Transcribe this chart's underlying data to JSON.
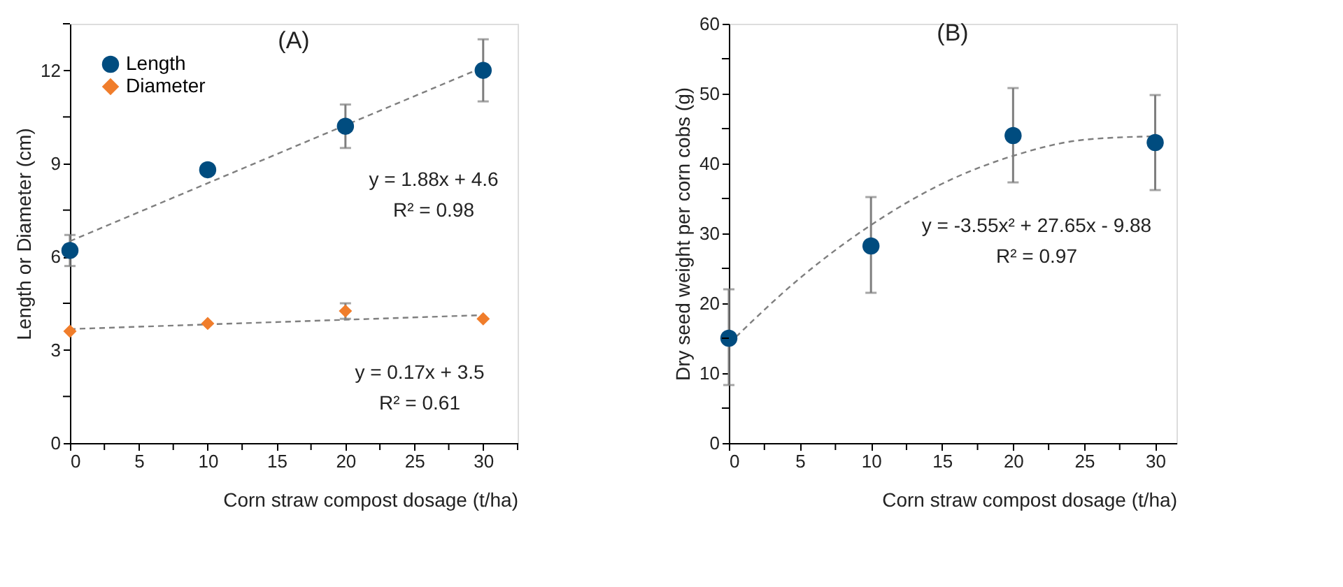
{
  "chart_data": [
    {
      "type": "scatter",
      "title": "(A)",
      "xlabel": "Corn straw compost dosage (t/ha)",
      "ylabel": "Length or Diameter (cm)",
      "xlim": [
        0,
        32.5
      ],
      "xticks": [
        0,
        {
          "value": 2.5,
          "label": null
        },
        5,
        {
          "value": 7.5,
          "label": null
        },
        10,
        {
          "value": 12.5,
          "label": null
        },
        15,
        {
          "value": 17.5,
          "label": null
        },
        20,
        {
          "value": 22.5,
          "label": null
        },
        25,
        {
          "value": 27.5,
          "label": null
        },
        30,
        {
          "value": 32.5,
          "label": null
        }
      ],
      "ylim": [
        0,
        13.5
      ],
      "yticks": [
        0,
        {
          "value": 1.5,
          "label": null
        },
        3,
        {
          "value": 4.5,
          "label": null
        },
        6,
        {
          "value": 7.5,
          "label": null
        },
        9,
        {
          "value": 10.5,
          "label": null
        },
        12,
        {
          "value": 13.5,
          "label": null
        }
      ],
      "grid": false,
      "legend": "top left",
      "series": [
        {
          "name": "Length",
          "marker": "circle",
          "color": "#004c7f",
          "x": [
            0,
            10,
            20,
            30
          ],
          "values": [
            6.2,
            8.8,
            10.2,
            12.0
          ],
          "errors": [
            0.5,
            null,
            0.7,
            1.0
          ]
        },
        {
          "name": "Diameter",
          "marker": "diamond",
          "color": "#f07d2b",
          "x": [
            0,
            10,
            20,
            30
          ],
          "values": [
            3.6,
            3.85,
            4.25,
            4.0
          ],
          "errors": [
            null,
            null,
            0.25,
            null
          ]
        },
        {
          "type": "line",
          "line_style": "dashed",
          "marker": "none",
          "color": "#7f7f7f",
          "x": [
            0,
            30
          ],
          "values": [
            6.5,
            12.1
          ]
        },
        {
          "type": "line",
          "line_style": "dashed",
          "marker": "none",
          "color": "#7f7f7f",
          "x": [
            0,
            30
          ],
          "values": [
            3.67,
            4.12
          ]
        }
      ],
      "annotations": [
        "y = 1.88x + 4.6",
        "R² = 0.98",
        "y = 0.17x + 3.5",
        "R² = 0.61"
      ]
    },
    {
      "type": "scatter",
      "title": "(B)",
      "xlabel": "Corn straw compost dosage (t/ha)",
      "ylabel": "Dry seed weight per corn cobs (g)",
      "xlim": [
        0,
        31.5
      ],
      "xticks": [
        0,
        {
          "value": 2.5,
          "label": null
        },
        5,
        {
          "value": 7.5,
          "label": null
        },
        10,
        {
          "value": 12.5,
          "label": null
        },
        15,
        {
          "value": 17.5,
          "label": null
        },
        20,
        {
          "value": 22.5,
          "label": null
        },
        25,
        {
          "value": 27.5,
          "label": null
        },
        30
      ],
      "ylim": [
        0,
        60
      ],
      "yticks": [
        0,
        {
          "value": 5,
          "label": null
        },
        10,
        {
          "value": 15,
          "label": null
        },
        20,
        {
          "value": 25,
          "label": null
        },
        30,
        {
          "value": 35,
          "label": null
        },
        40,
        {
          "value": 45,
          "label": null
        },
        50,
        {
          "value": 55,
          "label": null
        },
        60
      ],
      "grid": false,
      "legend": false,
      "series": [
        {
          "marker": "circle",
          "color": "#004c7f",
          "x": [
            0,
            10,
            20,
            30
          ],
          "values": [
            15.0,
            28.2,
            44.0,
            43.0
          ],
          "errors": [
            [
              8.3,
              22.0
            ],
            [
              21.5,
              35.2
            ],
            [
              37.3,
              50.8
            ],
            [
              36.2,
              49.8
            ]
          ]
        },
        {
          "type": "line",
          "line_style": "dashed",
          "marker": "none",
          "color": "#7f7f7f",
          "x": [
            0,
            5,
            10,
            15,
            20,
            25,
            30
          ],
          "values": [
            14.2,
            23.6,
            31.2,
            37.1,
            41.1,
            43.4,
            43.9
          ]
        }
      ],
      "annotations": [
        "y = -3.55x² + 27.65x - 9.88",
        "R² = 0.97"
      ]
    }
  ]
}
